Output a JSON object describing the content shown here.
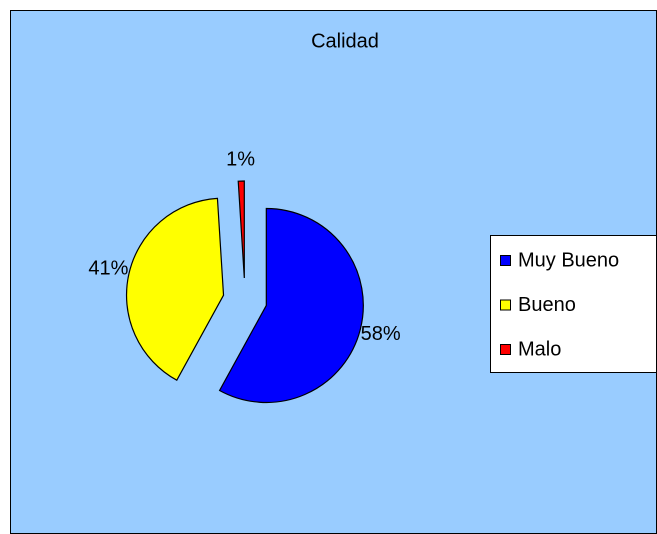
{
  "chart_data": {
    "type": "pie",
    "title": "Calidad",
    "categories": [
      "Muy Bueno",
      "Bueno",
      "Malo"
    ],
    "values": [
      58,
      41,
      1
    ],
    "value_labels": [
      "58%",
      "41%",
      "1%"
    ],
    "colors": [
      "#0000ff",
      "#ffff00",
      "#ff0000"
    ],
    "exploded": true,
    "legend": "right"
  }
}
